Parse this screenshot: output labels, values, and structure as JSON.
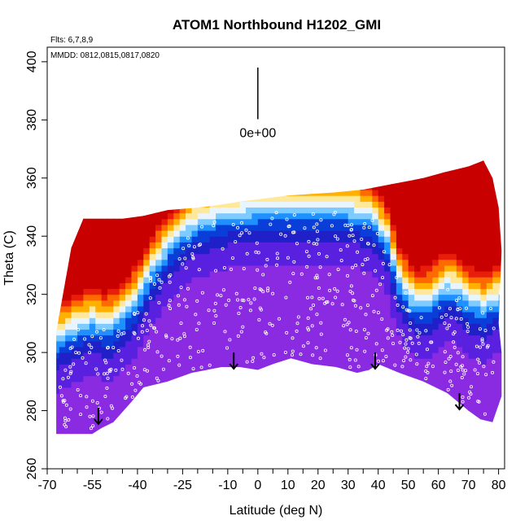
{
  "chart_data": {
    "type": "heatmap",
    "title": "ATOM1 Northbound H1202_GMI",
    "xlabel": "Latitude (deg N)",
    "ylabel": "Theta (C)",
    "xlim": [
      -70,
      82
    ],
    "ylim": [
      260,
      405
    ],
    "x_ticks": [
      -70,
      -55,
      -40,
      -25,
      -10,
      0,
      10,
      20,
      30,
      40,
      50,
      60,
      70,
      80
    ],
    "x_minor_ticks": [
      -65,
      -60,
      -50,
      -45,
      -35,
      -30,
      -20,
      -15,
      -5,
      5,
      15,
      25,
      35,
      45,
      55,
      65,
      75
    ],
    "y_ticks": [
      260,
      280,
      300,
      320,
      340,
      360,
      380,
      400
    ],
    "flights_note": "Flts: 6,7,8,9",
    "dates_note": "MMDD: 0812,0815,0817,0820",
    "colorbar_label": "0e+00",
    "colorbar_marker": {
      "x": 0,
      "y_top": 398,
      "y_bottom": 385
    },
    "tropopause_arrows": [
      {
        "lat": -53,
        "theta": 281
      },
      {
        "lat": -8,
        "theta": 300
      },
      {
        "lat": 39,
        "theta": 300
      },
      {
        "lat": 67,
        "theta": 286
      }
    ],
    "bottom_boundary": [
      [
        -67,
        272
      ],
      [
        -55,
        272
      ],
      [
        -52,
        274
      ],
      [
        -48,
        276
      ],
      [
        -42,
        283
      ],
      [
        -38,
        288
      ],
      [
        -30,
        290
      ],
      [
        -22,
        293
      ],
      [
        -12,
        295
      ],
      [
        -6,
        295
      ],
      [
        0,
        294
      ],
      [
        5,
        296
      ],
      [
        11,
        298
      ],
      [
        18,
        296
      ],
      [
        26,
        295
      ],
      [
        33,
        293
      ],
      [
        37,
        294
      ],
      [
        40,
        296
      ],
      [
        47,
        293
      ],
      [
        55,
        290
      ],
      [
        63,
        286
      ],
      [
        70,
        280
      ],
      [
        74,
        277
      ],
      [
        78,
        276
      ]
    ],
    "top_boundary": [
      [
        -67,
        307
      ],
      [
        -62,
        336
      ],
      [
        -58,
        346
      ],
      [
        -45,
        346
      ],
      [
        -38,
        347
      ],
      [
        -30,
        349
      ],
      [
        -18,
        350
      ],
      [
        -5,
        352
      ],
      [
        10,
        354
      ],
      [
        25,
        355
      ],
      [
        35,
        356
      ],
      [
        45,
        358
      ],
      [
        55,
        360
      ],
      [
        62,
        362
      ],
      [
        70,
        364
      ],
      [
        75,
        366
      ],
      [
        78,
        360
      ],
      [
        80,
        350
      ],
      [
        81,
        335
      ],
      [
        80,
        310
      ],
      [
        81,
        300
      ],
      [
        81,
        285
      ],
      [
        78,
        276
      ]
    ],
    "tropopause_curve": [
      [
        -67,
        300
      ],
      [
        -60,
        304
      ],
      [
        -55,
        306
      ],
      [
        -50,
        304
      ],
      [
        -45,
        308
      ],
      [
        -40,
        314
      ],
      [
        -35,
        324
      ],
      [
        -28,
        334
      ],
      [
        -20,
        340
      ],
      [
        -10,
        343
      ],
      [
        0,
        344
      ],
      [
        10,
        345
      ],
      [
        20,
        345
      ],
      [
        30,
        344
      ],
      [
        38,
        342
      ],
      [
        43,
        334
      ],
      [
        47,
        320
      ],
      [
        52,
        312
      ],
      [
        57,
        313
      ],
      [
        62,
        318
      ],
      [
        66,
        317
      ],
      [
        70,
        313
      ],
      [
        75,
        311
      ],
      [
        80,
        314
      ]
    ],
    "colormap": [
      "#8a2be2",
      "#5a20e0",
      "#2020c8",
      "#0a3ed8",
      "#1e90ff",
      "#7ecbff",
      "#e8f4ff",
      "#ffe89a",
      "#ffb000",
      "#ff6a00",
      "#e81e0a",
      "#c80000"
    ],
    "obs_point_color": "#ffffff"
  }
}
